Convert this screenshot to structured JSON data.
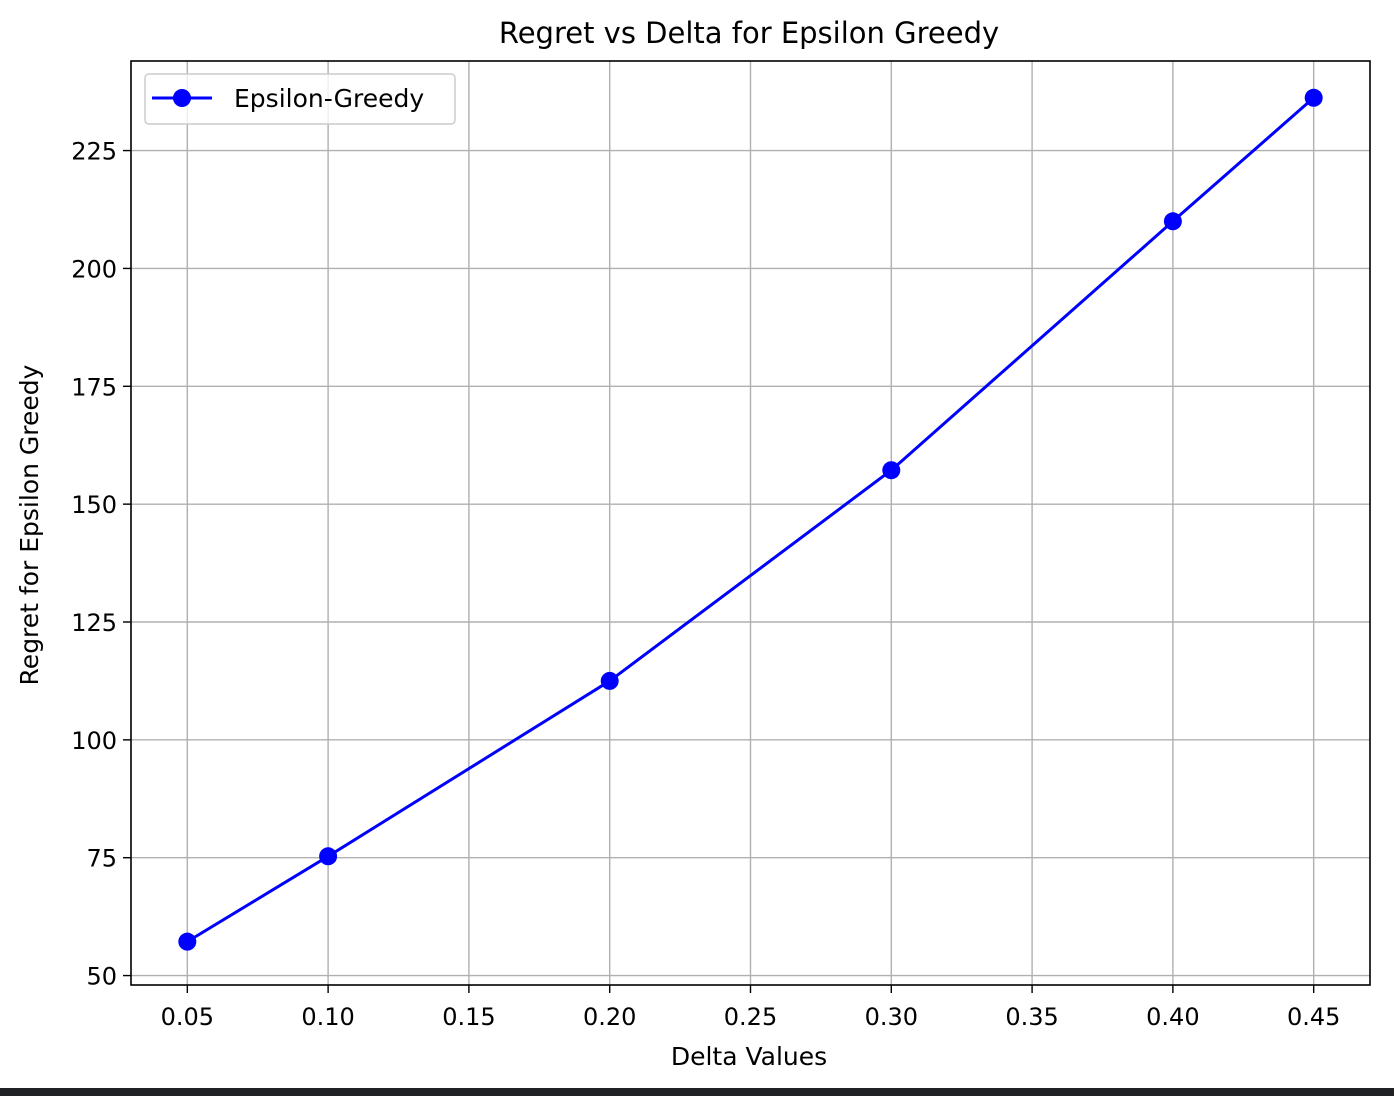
{
  "chart_data": {
    "type": "line",
    "title": "Regret vs Delta for Epsilon Greedy",
    "xlabel": "Delta Values",
    "ylabel": "Regret for Epsilon Greedy",
    "xlim": [
      0.03,
      0.47
    ],
    "ylim": [
      48,
      244
    ],
    "x_ticks": [
      0.05,
      0.1,
      0.15,
      0.2,
      0.25,
      0.3,
      0.35,
      0.4,
      0.45
    ],
    "x_tick_labels": [
      "0.05",
      "0.10",
      "0.15",
      "0.20",
      "0.25",
      "0.30",
      "0.35",
      "0.40",
      "0.45"
    ],
    "y_ticks": [
      50,
      75,
      100,
      125,
      150,
      175,
      200,
      225
    ],
    "y_tick_labels": [
      "50",
      "75",
      "100",
      "125",
      "150",
      "175",
      "200",
      "225"
    ],
    "grid": true,
    "legend_position": "top-left",
    "series": [
      {
        "name": "Epsilon-Greedy",
        "color": "#0000ff",
        "marker": "circle",
        "x": [
          0.05,
          0.1,
          0.2,
          0.3,
          0.4,
          0.45
        ],
        "y": [
          57.2,
          75.3,
          112.5,
          157.2,
          210.0,
          236.2
        ]
      }
    ]
  }
}
